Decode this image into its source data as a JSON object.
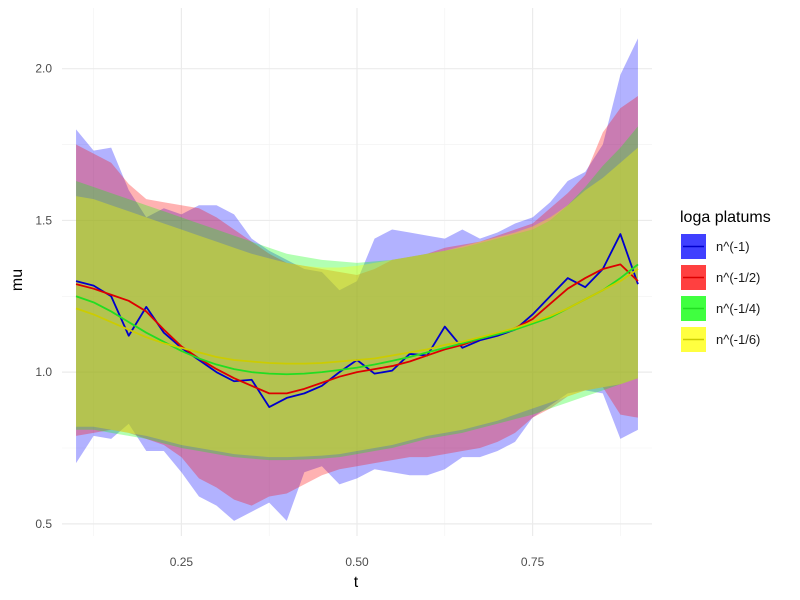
{
  "chart_data": {
    "type": "line",
    "title": "",
    "xlabel": "t",
    "ylabel": "mu",
    "xlim": [
      0.08,
      0.92
    ],
    "ylim": [
      0.46,
      2.2
    ],
    "x_ticks": [
      0.25,
      0.5,
      0.75
    ],
    "x_tick_labels": [
      "0.25",
      "0.50",
      "0.75"
    ],
    "y_ticks": [
      0.5,
      1.0,
      1.5,
      2.0
    ],
    "y_tick_labels": [
      "0.5",
      "1.0",
      "1.5",
      "2.0"
    ],
    "grid": true,
    "legend": {
      "title": "loga platums",
      "position": "right"
    },
    "series": [
      {
        "name": "n^(-1)",
        "color": "#0000ff",
        "line_color": "#0000cc",
        "band_opacity": 0.3,
        "x": [
          0.1,
          0.125,
          0.15,
          0.175,
          0.2,
          0.225,
          0.25,
          0.275,
          0.3,
          0.325,
          0.35,
          0.375,
          0.4,
          0.425,
          0.45,
          0.475,
          0.5,
          0.525,
          0.55,
          0.575,
          0.6,
          0.625,
          0.65,
          0.675,
          0.7,
          0.725,
          0.75,
          0.775,
          0.8,
          0.825,
          0.85,
          0.875,
          0.9
        ],
        "mean": [
          1.3,
          1.285,
          1.25,
          1.12,
          1.215,
          1.13,
          1.08,
          1.04,
          1.0,
          0.97,
          0.975,
          0.885,
          0.915,
          0.93,
          0.955,
          1.0,
          1.04,
          0.995,
          1.005,
          1.06,
          1.055,
          1.15,
          1.08,
          1.105,
          1.12,
          1.14,
          1.19,
          1.25,
          1.31,
          1.28,
          1.34,
          1.455,
          1.29
        ],
        "upper": [
          1.8,
          1.73,
          1.74,
          1.6,
          1.51,
          1.54,
          1.52,
          1.55,
          1.55,
          1.52,
          1.44,
          1.4,
          1.37,
          1.34,
          1.33,
          1.27,
          1.3,
          1.44,
          1.47,
          1.46,
          1.45,
          1.44,
          1.47,
          1.44,
          1.46,
          1.49,
          1.51,
          1.56,
          1.63,
          1.66,
          1.75,
          1.98,
          2.1
        ],
        "lower": [
          0.7,
          0.79,
          0.78,
          0.83,
          0.74,
          0.74,
          0.67,
          0.59,
          0.56,
          0.51,
          0.54,
          0.57,
          0.51,
          0.67,
          0.69,
          0.63,
          0.65,
          0.68,
          0.67,
          0.66,
          0.66,
          0.68,
          0.72,
          0.72,
          0.74,
          0.77,
          0.85,
          0.89,
          0.93,
          0.94,
          0.93,
          0.78,
          0.81
        ]
      },
      {
        "name": "n^(-1/2)",
        "color": "#ff0000",
        "line_color": "#dd0000",
        "band_opacity": 0.3,
        "x": [
          0.1,
          0.125,
          0.15,
          0.175,
          0.2,
          0.225,
          0.25,
          0.275,
          0.3,
          0.325,
          0.35,
          0.375,
          0.4,
          0.425,
          0.45,
          0.475,
          0.5,
          0.525,
          0.55,
          0.575,
          0.6,
          0.625,
          0.65,
          0.675,
          0.7,
          0.725,
          0.75,
          0.775,
          0.8,
          0.825,
          0.85,
          0.875,
          0.9
        ],
        "mean": [
          1.29,
          1.275,
          1.255,
          1.235,
          1.2,
          1.14,
          1.085,
          1.045,
          1.01,
          0.98,
          0.955,
          0.93,
          0.93,
          0.945,
          0.965,
          0.985,
          1.0,
          1.01,
          1.02,
          1.035,
          1.055,
          1.075,
          1.09,
          1.11,
          1.125,
          1.145,
          1.175,
          1.225,
          1.275,
          1.31,
          1.34,
          1.355,
          1.3
        ],
        "upper": [
          1.75,
          1.72,
          1.69,
          1.62,
          1.57,
          1.56,
          1.55,
          1.54,
          1.51,
          1.47,
          1.43,
          1.39,
          1.36,
          1.35,
          1.34,
          1.33,
          1.32,
          1.34,
          1.37,
          1.38,
          1.39,
          1.41,
          1.42,
          1.43,
          1.45,
          1.47,
          1.49,
          1.54,
          1.59,
          1.65,
          1.79,
          1.87,
          1.91
        ],
        "lower": [
          0.79,
          0.8,
          0.81,
          0.8,
          0.78,
          0.76,
          0.72,
          0.65,
          0.62,
          0.58,
          0.56,
          0.59,
          0.6,
          0.63,
          0.66,
          0.68,
          0.69,
          0.7,
          0.71,
          0.72,
          0.72,
          0.73,
          0.74,
          0.75,
          0.77,
          0.8,
          0.85,
          0.88,
          0.92,
          0.94,
          0.95,
          0.86,
          0.85
        ]
      },
      {
        "name": "n^(-1/4)",
        "color": "#00ff00",
        "line_color": "#22dd22",
        "band_opacity": 0.3,
        "x": [
          0.1,
          0.125,
          0.15,
          0.175,
          0.2,
          0.225,
          0.25,
          0.275,
          0.3,
          0.325,
          0.35,
          0.375,
          0.4,
          0.425,
          0.45,
          0.475,
          0.5,
          0.525,
          0.55,
          0.575,
          0.6,
          0.625,
          0.65,
          0.675,
          0.7,
          0.725,
          0.75,
          0.775,
          0.8,
          0.825,
          0.85,
          0.875,
          0.9
        ],
        "mean": [
          1.25,
          1.23,
          1.2,
          1.165,
          1.13,
          1.1,
          1.07,
          1.045,
          1.025,
          1.01,
          1.0,
          0.995,
          0.993,
          0.995,
          1.0,
          1.007,
          1.015,
          1.025,
          1.037,
          1.05,
          1.065,
          1.08,
          1.095,
          1.11,
          1.125,
          1.14,
          1.16,
          1.18,
          1.21,
          1.24,
          1.27,
          1.31,
          1.355
        ],
        "upper": [
          1.63,
          1.61,
          1.59,
          1.57,
          1.55,
          1.53,
          1.51,
          1.49,
          1.47,
          1.45,
          1.43,
          1.41,
          1.39,
          1.38,
          1.37,
          1.365,
          1.36,
          1.365,
          1.37,
          1.38,
          1.39,
          1.4,
          1.41,
          1.425,
          1.44,
          1.455,
          1.47,
          1.5,
          1.55,
          1.61,
          1.68,
          1.74,
          1.81
        ],
        "lower": [
          0.81,
          0.81,
          0.8,
          0.79,
          0.78,
          0.765,
          0.75,
          0.74,
          0.73,
          0.72,
          0.715,
          0.71,
          0.71,
          0.712,
          0.715,
          0.72,
          0.73,
          0.74,
          0.75,
          0.765,
          0.78,
          0.79,
          0.8,
          0.815,
          0.83,
          0.845,
          0.86,
          0.88,
          0.9,
          0.92,
          0.94,
          0.96,
          0.98
        ]
      },
      {
        "name": "n^(-1/6)",
        "color": "#ffff00",
        "line_color": "#cccc00",
        "band_opacity": 0.35,
        "x": [
          0.1,
          0.125,
          0.15,
          0.175,
          0.2,
          0.225,
          0.25,
          0.275,
          0.3,
          0.325,
          0.35,
          0.375,
          0.4,
          0.425,
          0.45,
          0.475,
          0.5,
          0.525,
          0.55,
          0.575,
          0.6,
          0.625,
          0.65,
          0.675,
          0.7,
          0.725,
          0.75,
          0.775,
          0.8,
          0.825,
          0.85,
          0.875,
          0.9
        ],
        "mean": [
          1.21,
          1.19,
          1.165,
          1.14,
          1.115,
          1.095,
          1.08,
          1.065,
          1.05,
          1.04,
          1.035,
          1.03,
          1.028,
          1.028,
          1.03,
          1.035,
          1.04,
          1.045,
          1.055,
          1.065,
          1.075,
          1.09,
          1.1,
          1.115,
          1.13,
          1.145,
          1.165,
          1.185,
          1.21,
          1.24,
          1.27,
          1.3,
          1.34
        ],
        "upper": [
          1.58,
          1.57,
          1.55,
          1.53,
          1.51,
          1.49,
          1.47,
          1.45,
          1.43,
          1.41,
          1.39,
          1.375,
          1.36,
          1.35,
          1.345,
          1.345,
          1.35,
          1.36,
          1.37,
          1.38,
          1.39,
          1.4,
          1.415,
          1.43,
          1.445,
          1.46,
          1.48,
          1.51,
          1.55,
          1.6,
          1.64,
          1.69,
          1.74
        ],
        "lower": [
          0.82,
          0.82,
          0.81,
          0.8,
          0.79,
          0.775,
          0.76,
          0.75,
          0.74,
          0.73,
          0.725,
          0.72,
          0.72,
          0.722,
          0.725,
          0.73,
          0.74,
          0.75,
          0.76,
          0.775,
          0.79,
          0.8,
          0.81,
          0.825,
          0.84,
          0.86,
          0.88,
          0.9,
          0.92,
          0.94,
          0.95,
          0.96,
          0.98
        ]
      }
    ]
  }
}
